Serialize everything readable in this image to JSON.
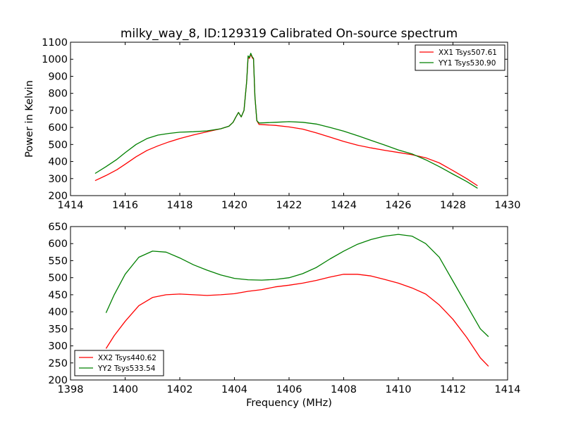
{
  "figure": {
    "title": "milky_way_8, ID:129319 Calibrated On-source spectrum",
    "ylabel": "Power in Kelvin",
    "xlabel": "Frequency (MHz)"
  },
  "chart_data": [
    {
      "type": "line",
      "title": "milky_way_8, ID:129319 Calibrated On-source spectrum",
      "xlabel": "",
      "ylabel": "Power in Kelvin",
      "xlim": [
        1414,
        1430
      ],
      "ylim": [
        200,
        1100
      ],
      "xticks": [
        1414,
        1416,
        1418,
        1420,
        1422,
        1424,
        1426,
        1428,
        1430
      ],
      "yticks": [
        200,
        300,
        400,
        500,
        600,
        700,
        800,
        900,
        1000,
        1100
      ],
      "grid": false,
      "legend_position": "top-right",
      "series": [
        {
          "name": "XX1 Tsys507.61",
          "color": "#ff0000",
          "points": [
            [
              1414.9,
              288
            ],
            [
              1415.3,
              318
            ],
            [
              1415.7,
              352
            ],
            [
              1416.0,
              384
            ],
            [
              1416.4,
              428
            ],
            [
              1416.8,
              465
            ],
            [
              1417.2,
              492
            ],
            [
              1417.6,
              515
            ],
            [
              1418.0,
              535
            ],
            [
              1418.5,
              556
            ],
            [
              1419.0,
              575
            ],
            [
              1419.5,
              592
            ],
            [
              1419.8,
              607
            ],
            [
              1419.95,
              630
            ],
            [
              1420.05,
              660
            ],
            [
              1420.15,
              688
            ],
            [
              1420.25,
              662
            ],
            [
              1420.35,
              700
            ],
            [
              1420.45,
              870
            ],
            [
              1420.5,
              1010
            ],
            [
              1420.55,
              1005
            ],
            [
              1420.6,
              1030
            ],
            [
              1420.65,
              1010
            ],
            [
              1420.7,
              1000
            ],
            [
              1420.75,
              780
            ],
            [
              1420.82,
              640
            ],
            [
              1420.9,
              618
            ],
            [
              1421.5,
              612
            ],
            [
              1422.0,
              603
            ],
            [
              1422.5,
              590
            ],
            [
              1423.0,
              568
            ],
            [
              1423.5,
              543
            ],
            [
              1424.0,
              518
            ],
            [
              1424.5,
              496
            ],
            [
              1425.0,
              480
            ],
            [
              1425.5,
              466
            ],
            [
              1426.0,
              453
            ],
            [
              1426.5,
              440
            ],
            [
              1427.0,
              422
            ],
            [
              1427.5,
              392
            ],
            [
              1428.0,
              347
            ],
            [
              1428.5,
              300
            ],
            [
              1428.9,
              258
            ]
          ]
        },
        {
          "name": "YY1 Tsys530.90",
          "color": "#008000",
          "points": [
            [
              1414.9,
              330
            ],
            [
              1415.3,
              370
            ],
            [
              1415.7,
              413
            ],
            [
              1416.0,
              452
            ],
            [
              1416.4,
              500
            ],
            [
              1416.8,
              535
            ],
            [
              1417.2,
              555
            ],
            [
              1417.6,
              565
            ],
            [
              1418.0,
              572
            ],
            [
              1418.5,
              575
            ],
            [
              1419.0,
              580
            ],
            [
              1419.5,
              592
            ],
            [
              1419.8,
              607
            ],
            [
              1419.95,
              630
            ],
            [
              1420.05,
              660
            ],
            [
              1420.15,
              688
            ],
            [
              1420.25,
              662
            ],
            [
              1420.35,
              700
            ],
            [
              1420.45,
              870
            ],
            [
              1420.5,
              1020
            ],
            [
              1420.55,
              1010
            ],
            [
              1420.6,
              1035
            ],
            [
              1420.65,
              1015
            ],
            [
              1420.7,
              1005
            ],
            [
              1420.75,
              780
            ],
            [
              1420.82,
              640
            ],
            [
              1420.9,
              626
            ],
            [
              1421.5,
              630
            ],
            [
              1422.0,
              634
            ],
            [
              1422.5,
              630
            ],
            [
              1423.0,
              620
            ],
            [
              1423.5,
              600
            ],
            [
              1424.0,
              578
            ],
            [
              1424.5,
              552
            ],
            [
              1425.0,
              524
            ],
            [
              1425.5,
              497
            ],
            [
              1426.0,
              468
            ],
            [
              1426.5,
              445
            ],
            [
              1427.0,
              410
            ],
            [
              1427.5,
              370
            ],
            [
              1428.0,
              326
            ],
            [
              1428.5,
              283
            ],
            [
              1428.9,
              243
            ]
          ]
        }
      ]
    },
    {
      "type": "line",
      "title": "",
      "xlabel": "Frequency (MHz)",
      "ylabel": "",
      "xlim": [
        1398,
        1414
      ],
      "ylim": [
        200,
        650
      ],
      "xticks": [
        1398,
        1400,
        1402,
        1404,
        1406,
        1408,
        1410,
        1412,
        1414
      ],
      "yticks": [
        200,
        250,
        300,
        350,
        400,
        450,
        500,
        550,
        600,
        650
      ],
      "grid": false,
      "legend_position": "bottom-left",
      "series": [
        {
          "name": "XX2 Tsys440.62",
          "color": "#ff0000",
          "points": [
            [
              1399.3,
              292
            ],
            [
              1399.6,
              330
            ],
            [
              1400.0,
              372
            ],
            [
              1400.5,
              418
            ],
            [
              1401.0,
              442
            ],
            [
              1401.5,
              450
            ],
            [
              1402.0,
              452
            ],
            [
              1402.5,
              450
            ],
            [
              1403.0,
              448
            ],
            [
              1403.5,
              450
            ],
            [
              1404.0,
              453
            ],
            [
              1404.5,
              460
            ],
            [
              1405.0,
              465
            ],
            [
              1405.5,
              473
            ],
            [
              1406.0,
              478
            ],
            [
              1406.5,
              484
            ],
            [
              1407.0,
              492
            ],
            [
              1407.5,
              502
            ],
            [
              1408.0,
              510
            ],
            [
              1408.5,
              510
            ],
            [
              1409.0,
              505
            ],
            [
              1409.5,
              495
            ],
            [
              1410.0,
              484
            ],
            [
              1410.5,
              470
            ],
            [
              1411.0,
              452
            ],
            [
              1411.5,
              420
            ],
            [
              1412.0,
              378
            ],
            [
              1412.5,
              325
            ],
            [
              1413.0,
              265
            ],
            [
              1413.3,
              240
            ]
          ]
        },
        {
          "name": "YY2 Tsys533.54",
          "color": "#008000",
          "points": [
            [
              1399.3,
              397
            ],
            [
              1399.6,
              450
            ],
            [
              1400.0,
              510
            ],
            [
              1400.5,
              560
            ],
            [
              1401.0,
              578
            ],
            [
              1401.5,
              575
            ],
            [
              1402.0,
              558
            ],
            [
              1402.5,
              538
            ],
            [
              1403.0,
              522
            ],
            [
              1403.5,
              508
            ],
            [
              1404.0,
              498
            ],
            [
              1404.5,
              494
            ],
            [
              1405.0,
              493
            ],
            [
              1405.5,
              495
            ],
            [
              1406.0,
              500
            ],
            [
              1406.5,
              512
            ],
            [
              1407.0,
              530
            ],
            [
              1407.5,
              555
            ],
            [
              1408.0,
              578
            ],
            [
              1408.5,
              598
            ],
            [
              1409.0,
              612
            ],
            [
              1409.5,
              622
            ],
            [
              1410.0,
              627
            ],
            [
              1410.5,
              622
            ],
            [
              1411.0,
              600
            ],
            [
              1411.5,
              560
            ],
            [
              1412.0,
              490
            ],
            [
              1412.5,
              420
            ],
            [
              1413.0,
              350
            ],
            [
              1413.3,
              327
            ]
          ]
        }
      ]
    }
  ]
}
